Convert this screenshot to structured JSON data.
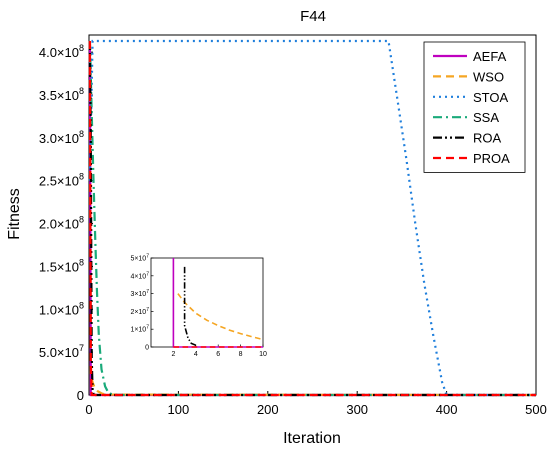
{
  "chart_data": {
    "type": "line",
    "title": "F44",
    "xlabel": "Iteration",
    "ylabel": "Fitness",
    "xlim": [
      0,
      500
    ],
    "ylim": [
      0,
      420000000
    ],
    "x_ticks": [
      0,
      100,
      200,
      300,
      400,
      500
    ],
    "y_ticks": [
      0,
      50000000,
      100000000,
      150000000,
      200000000,
      250000000,
      300000000,
      350000000,
      400000000
    ],
    "x_tick_labels": [
      "0",
      "100",
      "200",
      "300",
      "400",
      "500"
    ],
    "y_tick_labels": [
      {
        "mantissa": "0",
        "exp": ""
      },
      {
        "mantissa": "5.0×10",
        "exp": "7"
      },
      {
        "mantissa": "1.0×10",
        "exp": "8"
      },
      {
        "mantissa": "1.5×10",
        "exp": "8"
      },
      {
        "mantissa": "2.0×10",
        "exp": "8"
      },
      {
        "mantissa": "2.5×10",
        "exp": "8"
      },
      {
        "mantissa": "3.0×10",
        "exp": "8"
      },
      {
        "mantissa": "3.5×10",
        "exp": "8"
      },
      {
        "mantissa": "4.0×10",
        "exp": "8"
      }
    ],
    "grid": false,
    "legend_position": "top-right",
    "series": [
      {
        "name": "AEFA",
        "color": "#bf00bf",
        "dash": "solid",
        "x": [
          1,
          2,
          3,
          10,
          500
        ],
        "y": [
          413000000,
          0,
          0,
          0,
          0
        ]
      },
      {
        "name": "WSO",
        "color": "#f5a623",
        "dash": "dash",
        "x": [
          1,
          2,
          3,
          4,
          5,
          6,
          8,
          10,
          15,
          20,
          500
        ],
        "y": [
          413000000,
          25000000,
          19000000,
          15000000,
          12000000,
          9500000,
          6500000,
          4200000,
          1500000,
          500000,
          0
        ]
      },
      {
        "name": "STOA",
        "color": "#1f7fdc",
        "dash": "dot",
        "x": [
          1,
          4,
          335,
          345,
          355,
          365,
          375,
          385,
          395,
          400,
          500
        ],
        "y": [
          250000000,
          413000000,
          413000000,
          345000000,
          275000000,
          200000000,
          130000000,
          70000000,
          15000000,
          0,
          0
        ]
      },
      {
        "name": "SSA",
        "color": "#1aaa7a",
        "dash": "dashdot",
        "x": [
          1,
          3,
          5,
          7,
          9,
          11,
          14,
          18,
          22,
          30,
          500
        ],
        "y": [
          413000000,
          330000000,
          250000000,
          180000000,
          120000000,
          70000000,
          30000000,
          10000000,
          2000000,
          0,
          0
        ]
      },
      {
        "name": "ROA",
        "color": "#000000",
        "dash": "dashdotdot",
        "x": [
          1,
          2,
          3,
          4,
          5,
          7,
          500
        ],
        "y": [
          413000000,
          300000000,
          45000000,
          5000000,
          1000000,
          0,
          0
        ]
      },
      {
        "name": "PROA",
        "color": "#ff0000",
        "dash": "dash",
        "x": [
          1,
          2,
          3,
          500
        ],
        "y": [
          413000000,
          40000000,
          0,
          0
        ]
      }
    ],
    "inset": {
      "xlim": [
        0,
        10
      ],
      "ylim": [
        0,
        50000000
      ],
      "x_ticks": [
        2,
        4,
        6,
        8,
        10
      ],
      "x_tick_labels": [
        "2",
        "4",
        "6",
        "8",
        "10"
      ],
      "y_ticks": [
        0,
        10000000,
        20000000,
        30000000,
        40000000,
        50000000
      ],
      "y_tick_labels": [
        {
          "mantissa": "0",
          "exp": ""
        },
        {
          "mantissa": "1×10",
          "exp": "7"
        },
        {
          "mantissa": "2×10",
          "exp": "7"
        },
        {
          "mantissa": "3×10",
          "exp": "7"
        },
        {
          "mantissa": "4×10",
          "exp": "7"
        },
        {
          "mantissa": "5×10",
          "exp": "7"
        }
      ],
      "series": [
        {
          "name": "AEFA",
          "color": "#bf00bf",
          "dash": "solid",
          "x": [
            2,
            2,
            2.4,
            10
          ],
          "y": [
            50000000,
            0,
            0,
            0
          ]
        },
        {
          "name": "WSO",
          "color": "#f5a623",
          "dash": "dash",
          "x": [
            2.4,
            3,
            4,
            5,
            6,
            7,
            8,
            9,
            10
          ],
          "y": [
            30000000,
            25000000,
            19000000,
            15000000,
            12000000,
            9500000,
            7500000,
            5800000,
            4200000
          ]
        },
        {
          "name": "ROA",
          "color": "#000000",
          "dash": "dashdotdot",
          "x": [
            3,
            3,
            3.3,
            3.6,
            4
          ],
          "y": [
            45000000,
            12000000,
            5000000,
            2000000,
            1000000
          ]
        },
        {
          "name": "PROA",
          "color": "#ff0000",
          "dash": "dash",
          "x": [
            2,
            10
          ],
          "y": [
            0,
            0
          ]
        }
      ]
    }
  }
}
